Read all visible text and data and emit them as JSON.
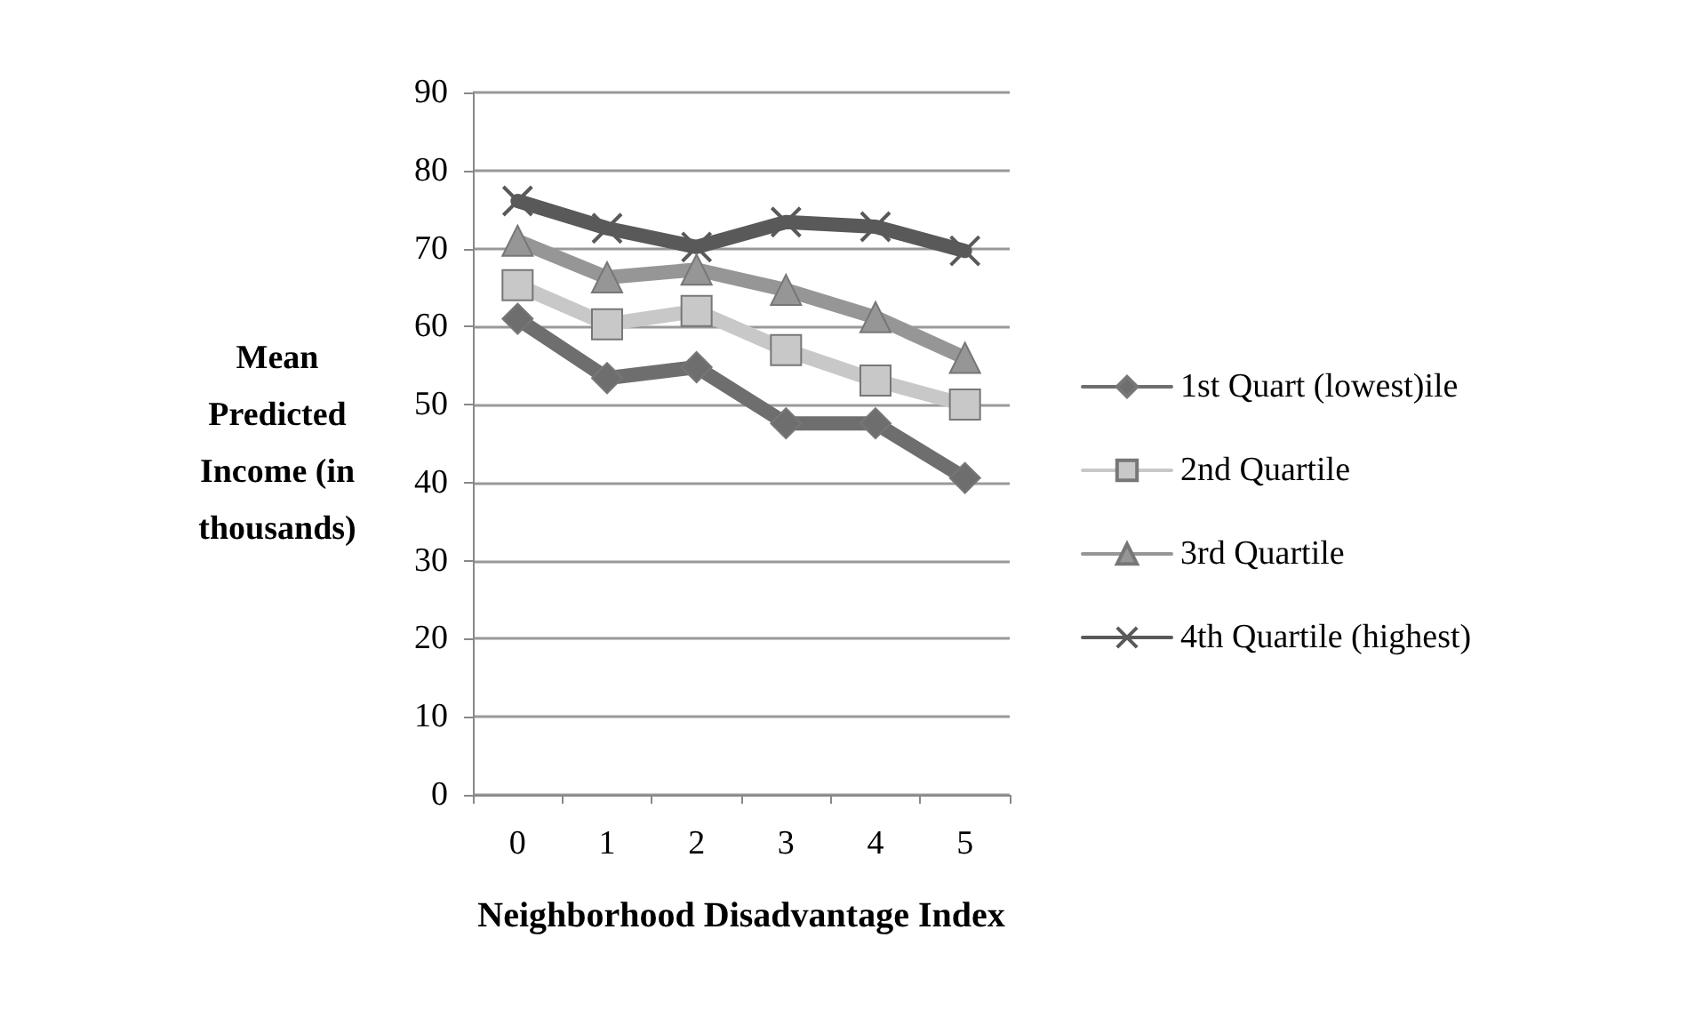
{
  "chart_data": {
    "type": "line",
    "xlabel": "Neighborhood Disadvantage Index",
    "ylabel": "Mean\nPredicted\nIncome (in\nthousands)",
    "categories": [
      "0",
      "1",
      "2",
      "3",
      "4",
      "5"
    ],
    "ylim": [
      0,
      90
    ],
    "yticks": [
      0,
      10,
      20,
      30,
      40,
      50,
      60,
      70,
      80,
      90
    ],
    "grid": "y",
    "legend": "right",
    "line_style": "solid",
    "series": [
      {
        "name": "1st Quart (lowest)ile",
        "color": "#6e6e6e",
        "marker": "diamond",
        "values": [
          61,
          53.4,
          54.8,
          47.6,
          47.6,
          40.6
        ]
      },
      {
        "name": "2nd Quartile",
        "color": "#c8c8c8",
        "marker": "square",
        "values": [
          65.3,
          60.3,
          62,
          57,
          53.1,
          50
        ]
      },
      {
        "name": "3rd Quartile",
        "color": "#969696",
        "marker": "triangle",
        "values": [
          71,
          66.3,
          67.3,
          64.7,
          61.2,
          56
        ]
      },
      {
        "name": "4th Quartile (highest)",
        "color": "#595959",
        "marker": "cross",
        "values": [
          76.1,
          72.6,
          70.2,
          73.4,
          72.8,
          69.7
        ]
      }
    ]
  }
}
